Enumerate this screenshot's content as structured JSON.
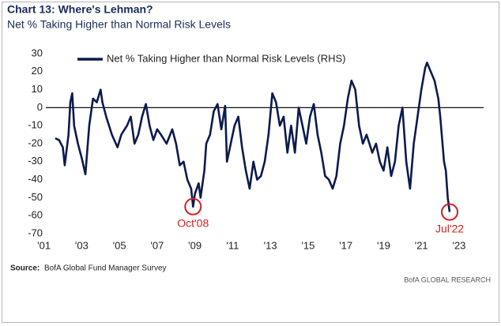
{
  "chart_data": {
    "type": "line",
    "title": "Chart 13: Where's Lehman?",
    "subtitle": "Net % Taking Higher than Normal Risk Levels",
    "x": [
      2001.6,
      2001.8,
      2002.0,
      2002.1,
      2002.3,
      2002.4,
      2002.5,
      2002.6,
      2002.8,
      2003.0,
      2003.2,
      2003.4,
      2003.6,
      2003.8,
      2004.0,
      2004.1,
      2004.3,
      2004.6,
      2004.9,
      2005.1,
      2005.4,
      2005.6,
      2005.8,
      2006.0,
      2006.2,
      2006.4,
      2006.6,
      2006.8,
      2007.0,
      2007.2,
      2007.5,
      2007.8,
      2008.0,
      2008.2,
      2008.4,
      2008.6,
      2008.8,
      2008.9,
      2009.0,
      2009.2,
      2009.3,
      2009.5,
      2009.6,
      2009.8,
      2010.0,
      2010.2,
      2010.4,
      2010.6,
      2010.7,
      2010.9,
      2011.1,
      2011.3,
      2011.5,
      2011.7,
      2011.9,
      2012.1,
      2012.3,
      2012.5,
      2012.7,
      2012.9,
      2013.1,
      2013.3,
      2013.5,
      2013.7,
      2013.9,
      2014.1,
      2014.3,
      2014.5,
      2014.7,
      2014.9,
      2015.1,
      2015.3,
      2015.5,
      2015.7,
      2015.9,
      2016.1,
      2016.3,
      2016.5,
      2016.7,
      2016.9,
      2017.1,
      2017.3,
      2017.5,
      2017.7,
      2017.9,
      2018.1,
      2018.4,
      2018.6,
      2018.8,
      2019.0,
      2019.2,
      2019.4,
      2019.6,
      2019.8,
      2020.0,
      2020.2,
      2020.4,
      2020.6,
      2020.8,
      2021.0,
      2021.2,
      2021.3,
      2021.5,
      2021.7,
      2021.9,
      2022.0,
      2022.2,
      2022.3,
      2022.4,
      2022.5
    ],
    "series": [
      {
        "name": "Net % Taking Higher than Normal Risk Levels (RHS)",
        "color": "#0d1a4d",
        "values": [
          -17,
          -18,
          -22,
          -32,
          -15,
          3,
          8,
          -10,
          -20,
          -28,
          -37,
          -10,
          5,
          3,
          10,
          3,
          -5,
          -15,
          -22,
          -15,
          -10,
          -5,
          -20,
          -15,
          -5,
          2,
          -10,
          -18,
          -12,
          -15,
          -20,
          -12,
          -20,
          -32,
          -30,
          -40,
          -45,
          -55,
          -48,
          -42,
          -50,
          -35,
          -20,
          -15,
          -2,
          2,
          -12,
          1,
          -30,
          -20,
          -10,
          -5,
          -22,
          -35,
          -45,
          -30,
          -40,
          -38,
          -30,
          -15,
          8,
          3,
          -10,
          -5,
          -25,
          -10,
          -25,
          0,
          -10,
          -20,
          -5,
          2,
          -15,
          -25,
          -38,
          -40,
          -45,
          -38,
          -20,
          -10,
          5,
          15,
          10,
          -10,
          -20,
          -15,
          -25,
          -20,
          -30,
          -35,
          -22,
          -38,
          -30,
          -10,
          0,
          -30,
          -45,
          -20,
          -5,
          10,
          22,
          25,
          20,
          15,
          5,
          -5,
          -30,
          -35,
          -50,
          -58
        ]
      }
    ],
    "xlim": [
      2001.1,
      2024.3
    ],
    "xticks": [
      {
        "value": 2001,
        "label": "'01"
      },
      {
        "value": 2003,
        "label": "'03"
      },
      {
        "value": 2005,
        "label": "'05"
      },
      {
        "value": 2007,
        "label": "'07"
      },
      {
        "value": 2009,
        "label": "'09"
      },
      {
        "value": 2011,
        "label": "'11"
      },
      {
        "value": 2013,
        "label": "'13"
      },
      {
        "value": 2015,
        "label": "'15"
      },
      {
        "value": 2017,
        "label": "'17"
      },
      {
        "value": 2019,
        "label": "'19"
      },
      {
        "value": 2021,
        "label": "'21"
      },
      {
        "value": 2023,
        "label": "'23"
      }
    ],
    "ylim": [
      -70,
      30
    ],
    "yticks": [
      30,
      20,
      10,
      0,
      -10,
      -20,
      -30,
      -40,
      -50,
      -60,
      -70
    ],
    "zero_line": true,
    "annotations": [
      {
        "label": "Oct'08",
        "x": 2008.9,
        "y": -55,
        "color": "#d42020"
      },
      {
        "label": "Jul'22",
        "x": 2022.5,
        "y": -58,
        "color": "#d42020"
      }
    ],
    "source": {
      "label": "Source:",
      "text": "BofA Global Fund Manager Survey"
    },
    "branding": "BofA GLOBAL RESEARCH"
  }
}
